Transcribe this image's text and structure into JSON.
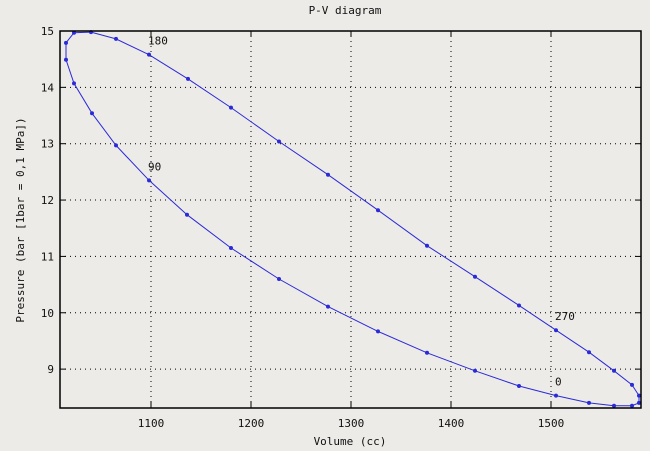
{
  "chart_data": {
    "type": "line",
    "title": "P-V diagram",
    "xlabel": "Volume (cc)",
    "ylabel": "Pressure (bar [1bar = 0,1 MPa])",
    "xlim": [
      1009,
      1590
    ],
    "ylim": [
      8.31,
      15
    ],
    "xticks": [
      1100,
      1200,
      1300,
      1400,
      1500
    ],
    "yticks": [
      9,
      10,
      11,
      12,
      13,
      14,
      15
    ],
    "grid": true,
    "line_color": "#2a2ad8",
    "x": [
      1505,
      1468,
      1424,
      1376,
      1327,
      1277,
      1228,
      1180,
      1136,
      1098,
      1065,
      1041,
      1023,
      1015,
      1015,
      1023,
      1040,
      1065,
      1098,
      1137,
      1180,
      1228,
      1277,
      1327,
      1376,
      1424,
      1468,
      1505,
      1538,
      1563,
      1581,
      1588,
      1588,
      1581,
      1563,
      1538
    ],
    "y": [
      8.53,
      8.7,
      8.97,
      9.29,
      9.67,
      10.11,
      10.6,
      11.15,
      11.74,
      12.35,
      12.97,
      13.54,
      14.07,
      14.49,
      14.79,
      14.97,
      14.98,
      14.86,
      14.58,
      14.15,
      13.64,
      13.04,
      12.45,
      11.82,
      11.19,
      10.64,
      10.13,
      9.69,
      9.3,
      8.97,
      8.72,
      8.53,
      8.4,
      8.35,
      8.35,
      8.4
    ],
    "annotations": [
      {
        "text": "0",
        "index": 0
      },
      {
        "text": "90",
        "index": 9
      },
      {
        "text": "180",
        "index": 18
      },
      {
        "text": "270",
        "index": 27
      }
    ]
  }
}
